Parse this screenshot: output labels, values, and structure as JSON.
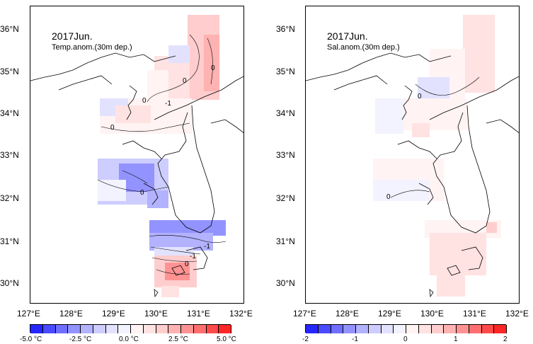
{
  "panels": [
    {
      "title": "2017Jun.",
      "subtitle": "Temp.anom.(30m dep.)",
      "contour_labels": [
        "0",
        "0",
        "0",
        "-1",
        "0",
        "0",
        "-1",
        "0",
        "-1"
      ],
      "colorbar": {
        "labels": [
          "-5.0 °C",
          "-2.5 °C",
          "0.0 °C",
          "2.5 °C",
          "5.0 °C"
        ],
        "colors": [
          "#2626ff",
          "#4a4aff",
          "#6f6fff",
          "#9393ff",
          "#b2b2ff",
          "#cdcdff",
          "#e2e2ff",
          "#f3f3ff",
          "#fff3f3",
          "#ffe2e2",
          "#ffcdcd",
          "#ffb2b2",
          "#ff9393",
          "#ff6f6f",
          "#ff4a4a",
          "#ff2626"
        ]
      }
    },
    {
      "title": "2017Jun.",
      "subtitle": "Sal.anom.(30m dep.)",
      "contour_labels": [
        "0",
        "0"
      ],
      "colorbar": {
        "labels": [
          "-2",
          "-1",
          "0",
          "1",
          "2"
        ],
        "colors": [
          "#2626ff",
          "#4a4aff",
          "#6f6fff",
          "#9393ff",
          "#b2b2ff",
          "#cdcdff",
          "#e2e2ff",
          "#f3f3ff",
          "#fff3f3",
          "#ffe2e2",
          "#ffcdcd",
          "#ffb2b2",
          "#ff9393",
          "#ff6f6f",
          "#ff4a4a",
          "#ff2626"
        ]
      }
    }
  ],
  "axes": {
    "lat_labels": [
      "36°N",
      "35°N",
      "34°N",
      "33°N",
      "32°N",
      "31°N",
      "30°N"
    ],
    "lon_labels": [
      "127°E",
      "128°E",
      "129°E",
      "130°E",
      "131°E",
      "132°E"
    ]
  }
}
